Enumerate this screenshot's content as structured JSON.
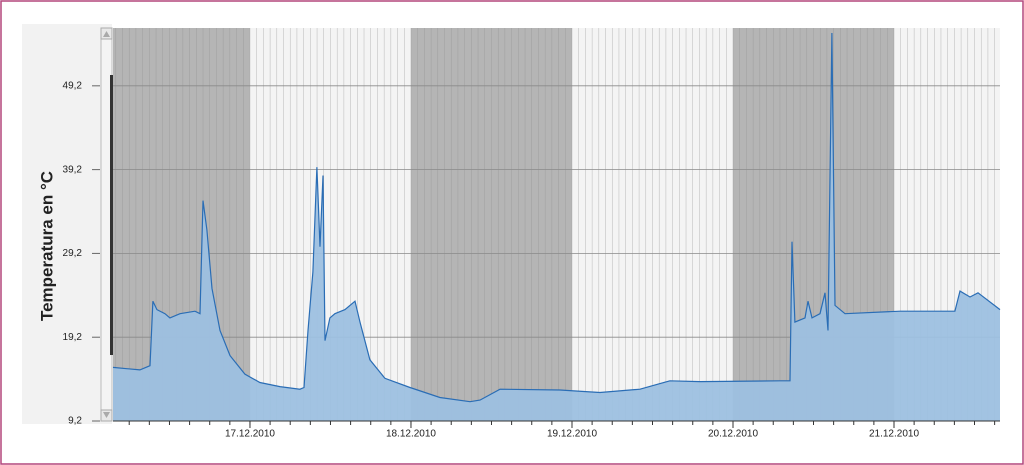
{
  "chart_data": {
    "type": "area",
    "ylabel": "Temperatura en °C",
    "x": [
      "2010-12-16 03:35",
      "2010-12-16 07:36",
      "2010-12-16 09:06",
      "2010-12-16 09:32",
      "2010-12-16 10:08",
      "2010-12-16 11:20",
      "2010-12-16 12:04",
      "2010-12-16 13:34",
      "2010-12-16 15:48",
      "2010-12-16 16:33",
      "2010-12-16 17:00",
      "2010-12-16 17:35",
      "2010-12-16 18:20",
      "2010-12-16 19:32",
      "2010-12-16 21:01",
      "2010-12-16 23:15",
      "2010-12-17 01:29",
      "2010-12-17 04:28",
      "2010-12-17 07:27",
      "2010-12-17 08:03",
      "2010-12-17 08:39",
      "2010-12-17 09:23",
      "2010-12-17 09:59",
      "2010-12-17 10:26",
      "2010-12-17 10:53",
      "2010-12-17 11:11",
      "2010-12-17 11:55",
      "2010-12-17 12:40",
      "2010-12-17 14:10",
      "2010-12-17 15:39",
      "2010-12-17 16:24",
      "2010-12-17 17:53",
      "2010-12-17 20:07",
      "2010-12-17 23:51",
      "2010-12-18 04:19",
      "2010-12-18 08:48",
      "2010-12-18 10:17",
      "2010-12-18 13:16",
      "2010-12-18 22:13",
      "2010-12-19 04:10",
      "2010-12-19 10:08",
      "2010-12-19 14:36",
      "2010-12-19 19:05",
      "2010-12-20 07:00",
      "2010-12-20 08:30",
      "2010-12-20 08:48",
      "2010-12-20 09:14",
      "2010-12-20 10:44",
      "2010-12-20 11:11",
      "2010-12-20 11:47",
      "2010-12-20 12:58",
      "2010-12-20 13:43",
      "2010-12-20 14:10",
      "2010-12-20 14:45",
      "2010-12-20 15:12",
      "2010-12-20 16:42",
      "2010-12-21 00:54",
      "2010-12-21 09:05",
      "2010-12-21 09:50",
      "2010-12-21 11:20",
      "2010-12-21 12:31",
      "2010-12-21 15:48"
    ],
    "series": [
      {
        "name": "Temperatura",
        "color": "#2a6db5",
        "fill": "#9dc0e0",
        "values": [
          15.6,
          15.3,
          15.8,
          23.5,
          22.5,
          22.0,
          21.5,
          22.0,
          22.3,
          22.0,
          35.5,
          32,
          25,
          20,
          17,
          14.8,
          13.8,
          13.3,
          13.0,
          13.2,
          20,
          27,
          39.5,
          30,
          38.5,
          18.8,
          21.5,
          22,
          22.5,
          23.5,
          21,
          16.5,
          14.3,
          13.2,
          12.0,
          11.5,
          11.7,
          13.0,
          12.9,
          12.6,
          13.0,
          14.0,
          13.9,
          14.0,
          14.0,
          30.6,
          21,
          21.5,
          23.5,
          21.5,
          22,
          24.5,
          20,
          55.5,
          23,
          22.0,
          22.3,
          22.3,
          24.7,
          24.0,
          24.5,
          22.5
        ]
      }
    ],
    "xlim": [
      "2010-12-16 03:35",
      "2010-12-21 15:48"
    ],
    "xticks": [
      {
        "value": "2010-12-17 00:00",
        "label": "17.12.2010"
      },
      {
        "value": "2010-12-18 00:00",
        "label": "18.12.2010"
      },
      {
        "value": "2010-12-19 00:00",
        "label": "19.12.2010"
      },
      {
        "value": "2010-12-20 00:00",
        "label": "20.12.2010"
      },
      {
        "value": "2010-12-21 00:00",
        "label": "21.12.2010"
      }
    ],
    "ylim": [
      9.2,
      56.1
    ],
    "yticks": [
      {
        "value": 9.2,
        "label": "9,2"
      },
      {
        "value": 19.2,
        "label": "19,2"
      },
      {
        "value": 29.2,
        "label": "29,2"
      },
      {
        "value": 39.2,
        "label": "39,2"
      },
      {
        "value": 49.2,
        "label": "49,2"
      }
    ],
    "grid": true
  }
}
